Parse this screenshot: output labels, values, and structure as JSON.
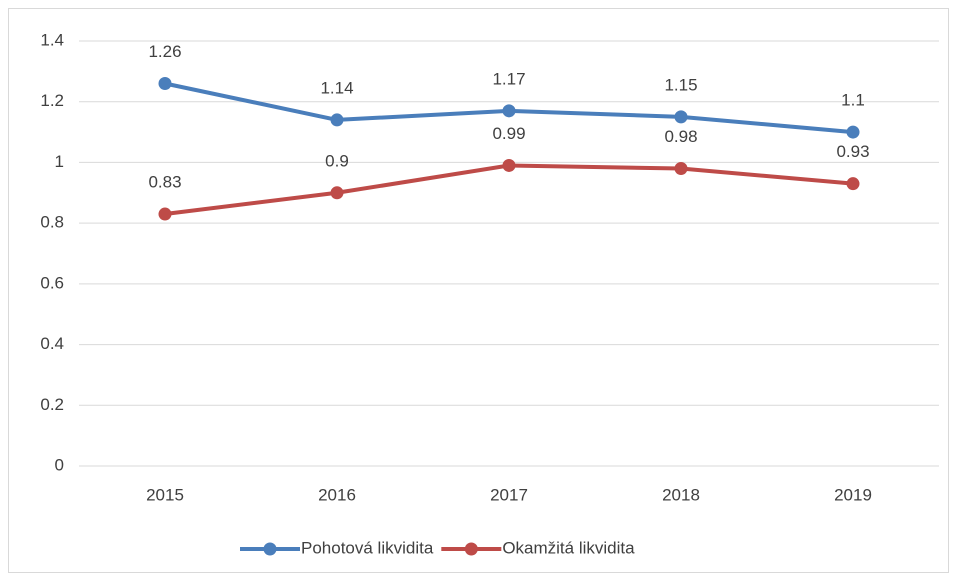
{
  "chart_data": {
    "type": "line",
    "categories": [
      "2015",
      "2016",
      "2017",
      "2018",
      "2019"
    ],
    "series": [
      {
        "name": "Pohotová likvidita",
        "color": "#4a7ebb",
        "values": [
          1.26,
          1.14,
          1.17,
          1.15,
          1.1
        ]
      },
      {
        "name": "Okamžitá likvidita",
        "color": "#be4b48",
        "values": [
          0.83,
          0.9,
          0.99,
          0.98,
          0.93
        ]
      }
    ],
    "ylim": [
      0,
      1.4
    ],
    "yticks": [
      0,
      0.2,
      0.4,
      0.6,
      0.8,
      1,
      1.2,
      1.4
    ],
    "grid": true,
    "legend": "bottom"
  }
}
